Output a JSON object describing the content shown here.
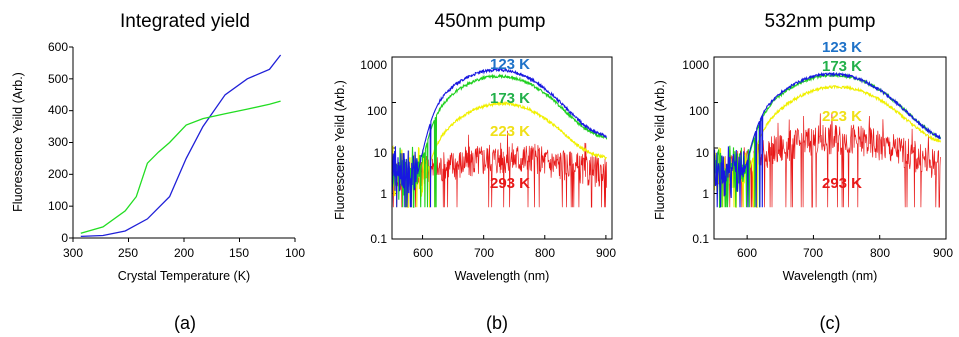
{
  "chart_data": [
    {
      "type": "line",
      "title": "Integrated yield",
      "xlabel": "Crystal Temperature (K)",
      "ylabel": "Fluorescence Yeild (Arb.)",
      "xlim": [
        300,
        100
      ],
      "ylim": [
        0,
        600
      ],
      "x_reversed": true,
      "xticks": [
        "300",
        "250",
        "200",
        "150",
        "100"
      ],
      "yticks": [
        "0",
        "100",
        "200",
        "300",
        "400",
        "500",
        "600"
      ],
      "panel_label": "(a)",
      "grid": false,
      "series": [
        {
          "color": "#2020d8",
          "x": [
            293,
            273,
            253,
            233,
            213,
            198,
            183,
            163,
            143,
            123,
            113
          ],
          "y": [
            5,
            8,
            22,
            60,
            130,
            250,
            350,
            450,
            500,
            530,
            575
          ]
        },
        {
          "color": "#22dd22",
          "x": [
            293,
            273,
            253,
            243,
            233,
            223,
            213,
            198,
            183,
            163,
            143,
            123,
            113
          ],
          "y": [
            15,
            35,
            85,
            130,
            235,
            270,
            300,
            355,
            375,
            390,
            405,
            420,
            430
          ]
        }
      ]
    },
    {
      "type": "line",
      "title": "450nm pump",
      "xlabel": "Wavelength (nm)",
      "ylabel": "Fluorescence Yeild (Arb.)",
      "xlim": [
        550,
        910
      ],
      "ylim": [
        0.1,
        1000
      ],
      "yscale": "log",
      "xticks": [
        "600",
        "700",
        "800",
        "900"
      ],
      "yticks": [
        "0.1",
        "1",
        "10",
        "100",
        "1000"
      ],
      "panel_label": "(b)",
      "grid": false,
      "annotations": [
        {
          "text": "123 K",
          "color": "#1e72c8"
        },
        {
          "text": "173 K",
          "color": "#22b04a"
        },
        {
          "text": "223 K",
          "color": "#f0e018"
        },
        {
          "text": "293 K",
          "color": "#e81818"
        }
      ],
      "series": [
        {
          "label": "123 K",
          "color": "#1818e0",
          "peak_nm": 722,
          "peak": 520,
          "end_value": 48
        },
        {
          "label": "173 K",
          "color": "#20d020",
          "peak_nm": 725,
          "peak": 380,
          "end_value": 45
        },
        {
          "label": "223 K",
          "color": "#f0f000",
          "peak_nm": 730,
          "peak": 95,
          "end_value": 17
        },
        {
          "label": "293 K",
          "color": "#e81818",
          "peak_nm": 740,
          "peak": 6,
          "end_value": 4
        }
      ]
    },
    {
      "type": "line",
      "title": "532nm pump",
      "xlabel": "Wavelength (nm)",
      "ylabel": "Fluorescence Yeild (Arb.)",
      "xlim": [
        550,
        900
      ],
      "ylim": [
        0.1,
        1000
      ],
      "yscale": "log",
      "xticks": [
        "600",
        "700",
        "800",
        "900"
      ],
      "yticks": [
        "0.1",
        "1",
        "10",
        "100",
        "1000"
      ],
      "panel_label": "(c)",
      "grid": false,
      "annotations": [
        {
          "text": "123 K",
          "color": "#1e72c8"
        },
        {
          "text": "173 K",
          "color": "#22b04a"
        },
        {
          "text": "223 K",
          "color": "#f0e018"
        },
        {
          "text": "293 K",
          "color": "#e81818"
        }
      ],
      "series": [
        {
          "label": "123 K",
          "color": "#1818e0",
          "peak_nm": 728,
          "peak": 420,
          "end_value": 35
        },
        {
          "label": "173 K",
          "color": "#20d020",
          "peak_nm": 730,
          "peak": 400,
          "end_value": 33
        },
        {
          "label": "223 K",
          "color": "#f0f000",
          "peak_nm": 735,
          "peak": 220,
          "end_value": 30
        },
        {
          "label": "293 K",
          "color": "#e81818",
          "peak_nm": 735,
          "peak": 15,
          "end_value": 7
        }
      ]
    }
  ]
}
